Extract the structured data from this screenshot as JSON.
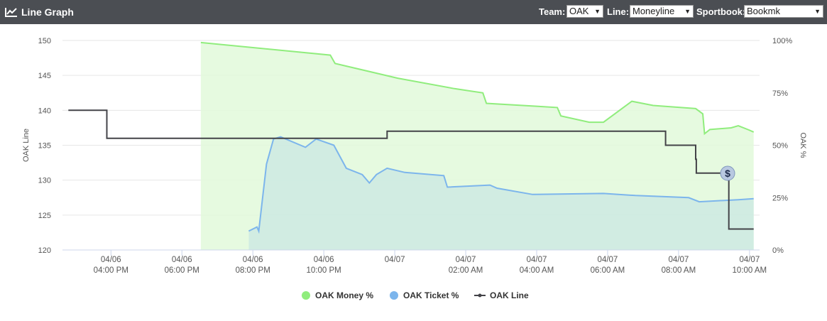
{
  "header": {
    "title": "Line Graph",
    "team_label": "Team:",
    "team": "OAK",
    "line_label": "Line:",
    "line": "Moneyline",
    "sportsbook_label": "Sportbook:",
    "sportsbook": "Bookmk"
  },
  "chart_data": {
    "type": "line",
    "ylabel": "OAK Line",
    "y2label": "OAK %",
    "xlim": [
      "04/06 02:38 PM",
      "04/07 10:17 AM"
    ],
    "xticks": [
      "04/06 04:00 PM",
      "04/06 06:00 PM",
      "04/06 08:00 PM",
      "04/06 10:00 PM",
      "04/07",
      "04/07 02:00 AM",
      "04/07 04:00 AM",
      "04/07 06:00 AM",
      "04/07 08:00 AM",
      "04/07 10:00 AM"
    ],
    "ylim": [
      120,
      150
    ],
    "yticks": [
      120,
      125,
      130,
      135,
      140,
      145,
      150
    ],
    "y2lim": [
      0,
      100
    ],
    "y2ticks": [
      {
        "value": 0,
        "label": "0%"
      },
      {
        "value": 25,
        "label": "25%"
      },
      {
        "value": 50,
        "label": "50%"
      },
      {
        "value": 75,
        "label": "75%"
      },
      {
        "value": 100,
        "label": "100%"
      }
    ],
    "grid": true,
    "series": [
      {
        "name": "OAK Money %",
        "color": "#90ed7d",
        "fill": "#e2f9db",
        "axis": "y2",
        "x": [
          "04/06 06:32 PM",
          "04/06 10:11 PM",
          "04/06 10:19 PM",
          "04/07 12:05 AM",
          "04/07 01:41 AM",
          "04/07 02:29 AM",
          "04/07 02:35 AM",
          "04/07 04:05 AM",
          "04/07 04:35 AM",
          "04/07 04:41 AM",
          "04/07 05:29 AM",
          "04/07 05:53 AM",
          "04/07 06:41 AM",
          "04/07 07:17 AM",
          "04/07 08:29 AM",
          "04/07 08:41 AM",
          "04/07 08:44 AM",
          "04/07 08:53 AM",
          "04/07 09:29 AM",
          "04/07 09:41 AM",
          "04/07 09:59 AM",
          "04/07 10:07 AM"
        ],
        "values": [
          99,
          93,
          89,
          82,
          77,
          75,
          70,
          68.5,
          68,
          64,
          61,
          61,
          71,
          69,
          67.5,
          65,
          55.5,
          57.5,
          58.3,
          59.3,
          57.3,
          56.3
        ]
      },
      {
        "name": "OAK Ticket %",
        "color": "#7cb5ec",
        "fill": "#cde9e2",
        "axis": "y2",
        "x": [
          "04/06 07:53 PM",
          "04/06 08:07 PM",
          "04/06 08:10 PM",
          "04/06 08:23 PM",
          "04/06 08:35 PM",
          "04/06 08:47 PM",
          "04/06 09:29 PM",
          "04/06 09:47 PM",
          "04/06 10:17 PM",
          "04/06 10:38 PM",
          "04/06 11:05 PM",
          "04/06 11:17 PM",
          "04/06 11:29 PM",
          "04/06 11:47 PM",
          "04/07 12:17 AM",
          "04/07 01:23 AM",
          "04/07 01:29 AM",
          "04/07 02:41 AM",
          "04/07 02:53 AM",
          "04/07 03:53 AM",
          "04/07 05:53 AM",
          "04/07 06:47 AM",
          "04/07 08:17 AM",
          "04/07 08:35 AM",
          "04/07 09:41 AM",
          "04/07 10:07 AM"
        ],
        "values": [
          9,
          11,
          9,
          41,
          53,
          54,
          49,
          53,
          50,
          39,
          36,
          32,
          36,
          39,
          37,
          35.5,
          30,
          31,
          29.5,
          26.5,
          27,
          26,
          25,
          23,
          24,
          24.5
        ]
      },
      {
        "name": "OAK Line",
        "color": "#434348",
        "x": [
          "04/06 02:48 PM",
          "04/06 03:53 PM",
          "04/06 03:53 PM",
          "04/06 11:47 PM",
          "04/06 11:47 PM",
          "04/07 07:38 AM",
          "04/07 07:38 AM",
          "04/07 08:29 AM",
          "04/07 08:29 AM",
          "04/07 08:30 AM",
          "04/07 08:30 AM",
          "04/07 09:25 AM",
          "04/07 09:25 AM",
          "04/07 10:07 AM"
        ],
        "values": [
          140,
          140,
          136,
          136,
          137,
          137,
          135,
          135,
          133,
          133,
          131,
          131,
          123,
          123
        ]
      }
    ]
  }
}
